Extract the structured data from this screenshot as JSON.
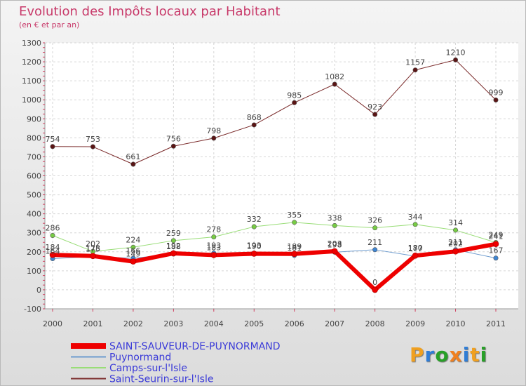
{
  "title": "Evolution des Impôts locaux par Habitant",
  "subtitle": "(en € et par an)",
  "logo": {
    "text": "Proxiti",
    "letters": [
      {
        "ch": "P",
        "color": "#f0a020"
      },
      {
        "ch": "r",
        "color": "#2f7dd6"
      },
      {
        "ch": "o",
        "color": "#28a028"
      },
      {
        "ch": "x",
        "color": "#f08020"
      },
      {
        "ch": "i",
        "color": "#2f7dd6"
      },
      {
        "ch": "t",
        "color": "#f0a020"
      },
      {
        "ch": "i",
        "color": "#28a028"
      }
    ]
  },
  "chart_data": {
    "type": "line",
    "title": "Evolution des Impôts locaux par Habitant",
    "subtitle": "(en € et par an)",
    "x": [
      "2000",
      "2001",
      "2002",
      "2003",
      "2004",
      "2005",
      "2006",
      "2007",
      "2008",
      "2009",
      "2010",
      "2011"
    ],
    "ylim": [
      -100,
      1300
    ],
    "yticks": [
      -100,
      0,
      100,
      200,
      300,
      400,
      500,
      600,
      700,
      800,
      900,
      1000,
      1100,
      1200,
      1300
    ],
    "grid": true,
    "legend_position": "bottom-left",
    "series": [
      {
        "name": "SAINT-SAUVEUR-DE-PUYNORMAND",
        "color": "#ee0000",
        "width": 6,
        "marker": "#ee0000",
        "show_labels": true,
        "values": [
          184,
          178,
          149,
          192,
          183,
          190,
          189,
          203,
          0,
          180,
          202,
          241
        ],
        "labels": [
          "184",
          "178",
          "149",
          "192",
          "183",
          "190",
          "189",
          "203",
          "0",
          "180",
          "202",
          "241"
        ]
      },
      {
        "name": "Puynormand",
        "color": "#6e9ccf",
        "width": 1,
        "marker": "#3f86d3",
        "show_labels": true,
        "values": [
          164,
          175,
          166,
          188,
          193,
          193,
          181,
          198,
          211,
          177,
          211,
          167
        ],
        "labels": [
          "164",
          "175",
          "166",
          "188",
          "193",
          "193",
          "181",
          "198",
          "211",
          "177",
          "211",
          "167"
        ]
      },
      {
        "name": "Camps-sur-l'Isle",
        "color": "#99dd77",
        "width": 1,
        "marker": "#77cc44",
        "show_labels": true,
        "values": [
          286,
          202,
          224,
          259,
          278,
          332,
          355,
          338,
          326,
          344,
          314,
          249
        ],
        "labels": [
          "286",
          "202",
          "224",
          "259",
          "278",
          "332",
          "355",
          "338",
          "326",
          "344",
          "314",
          "249"
        ]
      },
      {
        "name": "Saint-Seurin-sur-l'Isle",
        "color": "#7a2a2a",
        "width": 1,
        "marker": "#5a1414",
        "show_labels": true,
        "values": [
          754,
          753,
          661,
          756,
          798,
          868,
          985,
          1082,
          923,
          1157,
          1210,
          999
        ],
        "labels": [
          "754",
          "753",
          "661",
          "756",
          "798",
          "868",
          "985",
          "1082",
          "923",
          "1157",
          "1210",
          "999"
        ]
      }
    ]
  }
}
